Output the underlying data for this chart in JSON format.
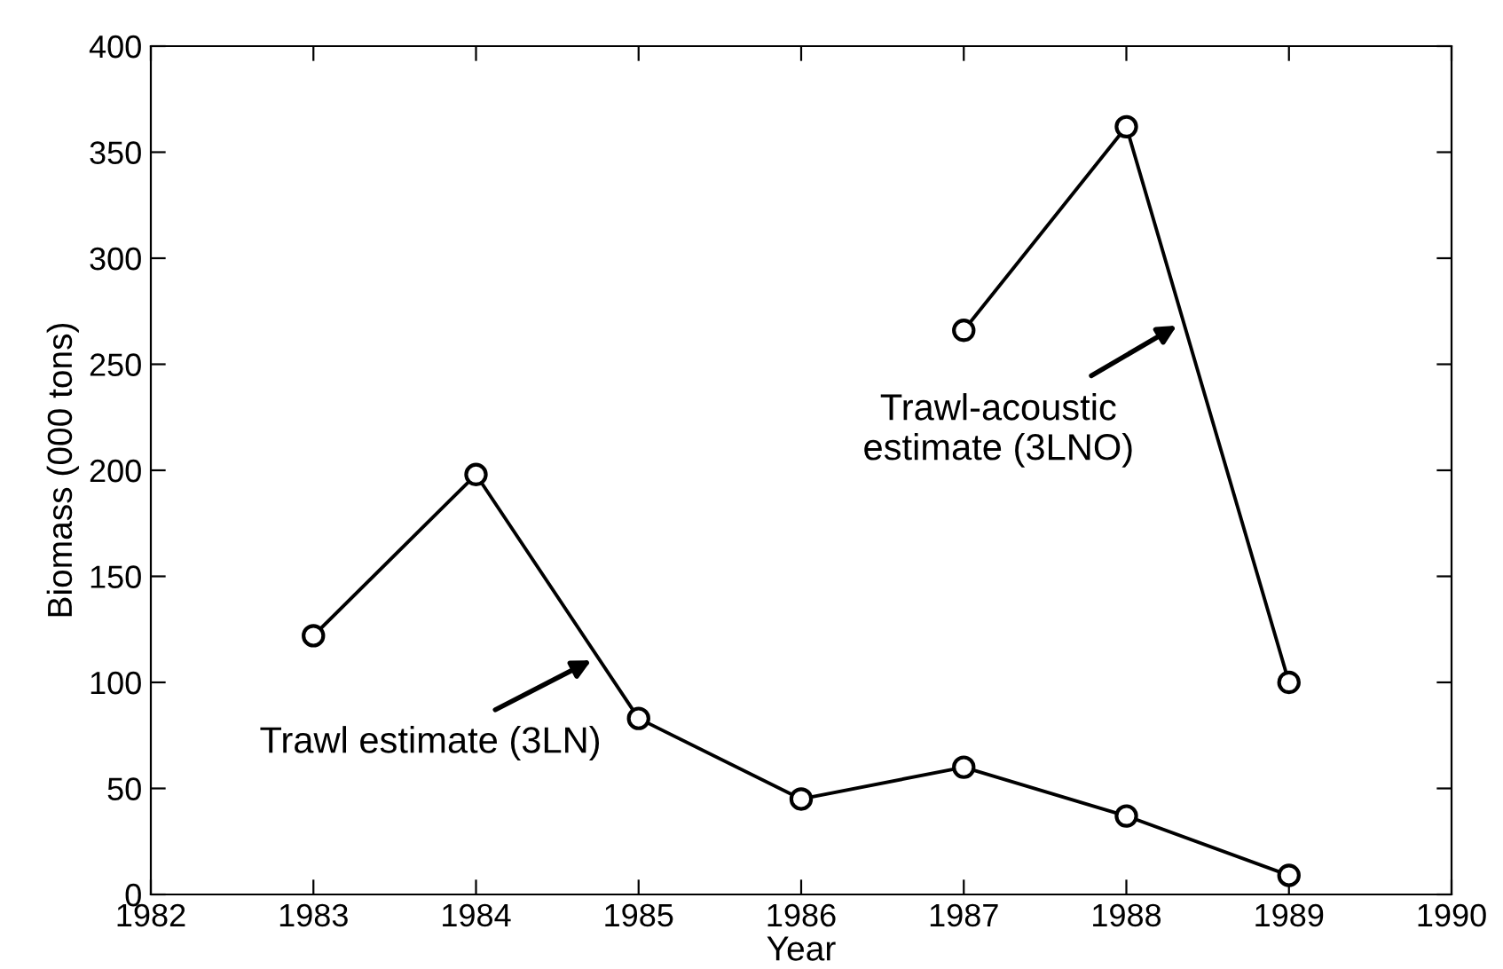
{
  "chart_data": {
    "type": "line",
    "xlabel": "Year",
    "ylabel": "Biomass (000 tons)",
    "xlim": [
      1982,
      1990
    ],
    "xticks": [
      1982,
      1983,
      1984,
      1985,
      1986,
      1987,
      1988,
      1989,
      1990
    ],
    "ylim": [
      0,
      400
    ],
    "yticks": [
      0,
      50,
      100,
      150,
      200,
      250,
      300,
      350,
      400
    ],
    "grid": false,
    "line_style": "solid",
    "marker": "circle",
    "annotations": [
      {
        "text": "Trawl estimate (3LN)",
        "x": 1984.75,
        "y": 112
      },
      {
        "text": "Trawl-acoustic\nestimate (3LNO)",
        "x": 1988.35,
        "y": 270
      }
    ],
    "series": [
      {
        "color": "#000000",
        "x": [
          1983,
          1984,
          1985,
          1986,
          1987,
          1988,
          1989
        ],
        "values": [
          122,
          198,
          83,
          45,
          60,
          37,
          9
        ]
      },
      {
        "color": "#000000",
        "x": [
          1987,
          1988,
          1989
        ],
        "values": [
          266,
          362,
          100
        ]
      }
    ]
  }
}
